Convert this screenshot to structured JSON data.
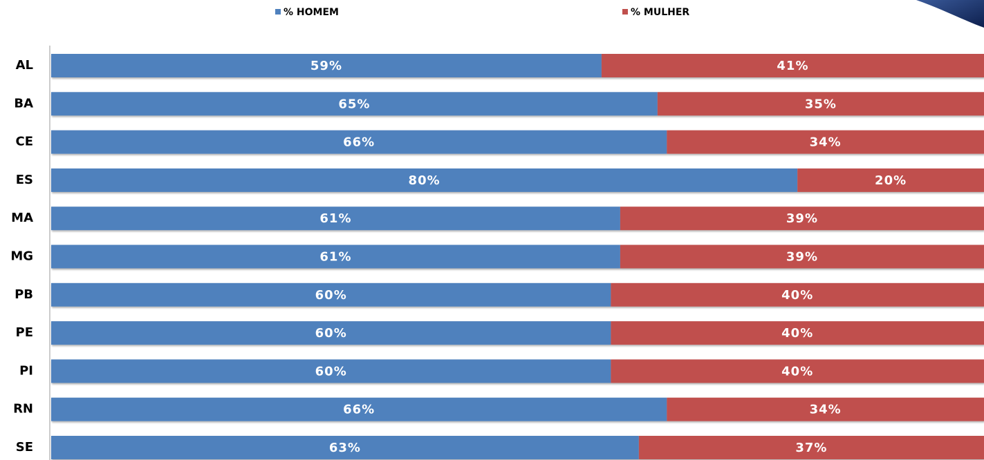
{
  "chart_data": {
    "type": "stacked-bar-horizontal",
    "categories": [
      "AL",
      "BA",
      "CE",
      "ES",
      "MA",
      "MG",
      "PB",
      "PE",
      "PI",
      "RN",
      "SE"
    ],
    "series": [
      {
        "name": "% HOMEM",
        "color": "#4f81bd",
        "values": [
          59,
          65,
          66,
          80,
          61,
          61,
          60,
          60,
          60,
          66,
          63
        ],
        "value_labels": [
          "59%",
          "65%",
          "66%",
          "80%",
          "61%",
          "61%",
          "60%",
          "60%",
          "60%",
          "66%",
          "63%"
        ]
      },
      {
        "name": "% MULHER",
        "color": "#c0504d",
        "values": [
          41,
          35,
          34,
          20,
          39,
          39,
          40,
          40,
          40,
          34,
          37
        ],
        "value_labels": [
          "41%",
          "35%",
          "34%",
          "20%",
          "39%",
          "39%",
          "40%",
          "40%",
          "40%",
          "34%",
          "37%"
        ]
      }
    ],
    "xlim": [
      0,
      100
    ],
    "legend": "top"
  }
}
